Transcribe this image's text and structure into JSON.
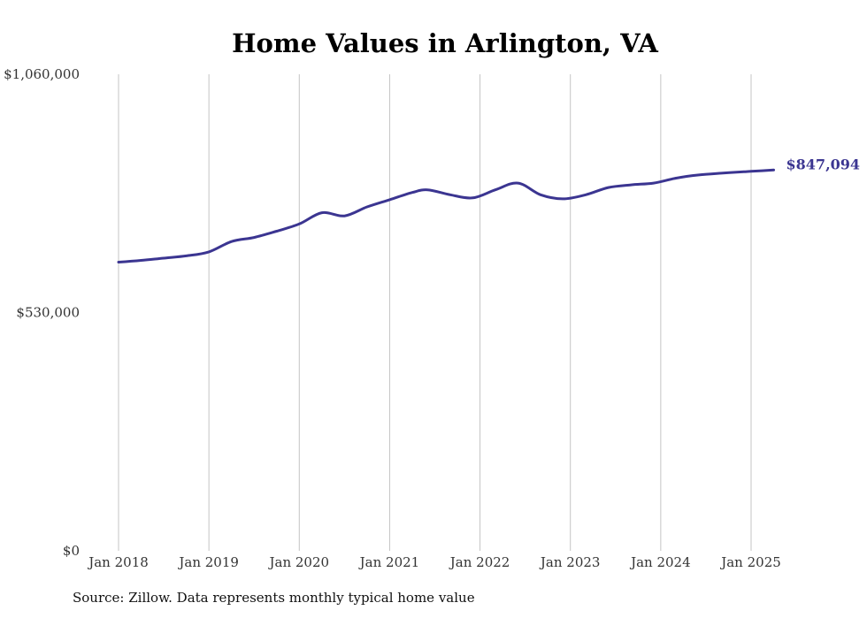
{
  "chart_data": {
    "type": "line",
    "title": "Home Values in Arlington, VA",
    "xlabel": "",
    "ylabel": "",
    "ylim": [
      0,
      1060000
    ],
    "y_ticks": [
      "$0",
      "$530,000",
      "$1,060,000"
    ],
    "y_tick_values": [
      0,
      530000,
      1060000
    ],
    "x_ticks": [
      "Jan 2018",
      "Jan 2019",
      "Jan 2020",
      "Jan 2021",
      "Jan 2022",
      "Jan 2023",
      "Jan 2024",
      "Jan 2025"
    ],
    "x_tick_values": [
      2018.0,
      2019.0,
      2020.0,
      2021.0,
      2022.0,
      2023.0,
      2024.0,
      2025.0
    ],
    "grid": "vertical",
    "series_color": "#3b3591",
    "end_label": "$847,094",
    "series": [
      {
        "x": [
          2018.0,
          2018.25,
          2018.5,
          2018.75,
          2019.0,
          2019.25,
          2019.5,
          2019.75,
          2020.0,
          2020.25,
          2020.5,
          2020.75,
          2021.0,
          2021.25,
          2021.42,
          2021.67,
          2021.92,
          2022.17,
          2022.42,
          2022.67,
          2022.92,
          2023.17,
          2023.42,
          2023.67,
          2023.92,
          2024.17,
          2024.42,
          2024.67,
          2024.92,
          2025.0,
          2025.25
        ],
        "y": [
          642000,
          646000,
          651000,
          656000,
          665000,
          688000,
          697000,
          711000,
          727000,
          752000,
          745000,
          765000,
          781000,
          797000,
          803000,
          792000,
          785000,
          803000,
          818000,
          792000,
          783000,
          792000,
          808000,
          814000,
          818000,
          829000,
          836000,
          840000,
          843000,
          844000,
          847094
        ]
      }
    ]
  },
  "source_note": "Source: Zillow. Data represents monthly typical home value"
}
